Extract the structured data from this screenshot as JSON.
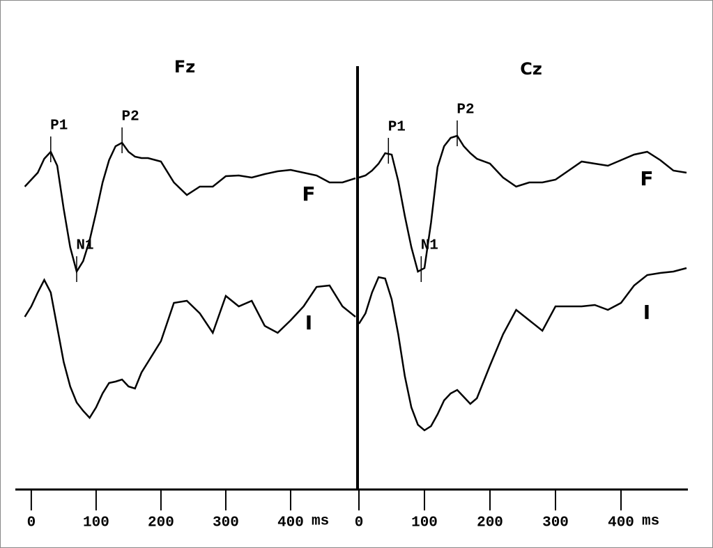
{
  "chart_data": [
    {
      "type": "line",
      "title": "Fz",
      "xlabel": "ms",
      "xlim": [
        -16,
        500
      ],
      "ylim": [
        -30,
        30
      ],
      "xticks": [
        0,
        100,
        200,
        300,
        400
      ],
      "x": [
        -10,
        0,
        10,
        20,
        30,
        40,
        50,
        60,
        70,
        80,
        90,
        100,
        110,
        120,
        130,
        140,
        150,
        160,
        170,
        180,
        200,
        220,
        240,
        260,
        280,
        300,
        320,
        340,
        360,
        380,
        400,
        420,
        440,
        460,
        480,
        500
      ],
      "series": [
        {
          "name": "F",
          "color": "#000000",
          "values": [
            13.2,
            14.2,
            15.2,
            17.2,
            18.2,
            16.2,
            10,
            4.5,
            1,
            2.5,
            5.5,
            9.5,
            13.8,
            17,
            19,
            19.5,
            18.2,
            17.5,
            17.3,
            17.3,
            16.8,
            13.8,
            12,
            13.2,
            13.2,
            14.7,
            14.8,
            14.5,
            15,
            15.4,
            15.6,
            15.2,
            14.8,
            13.8,
            13.8,
            14.4
          ]
        },
        {
          "name": "I",
          "color": "#000000",
          "values": [
            -5.5,
            -4,
            -2,
            -0.2,
            -2,
            -7,
            -12,
            -15.5,
            -17.8,
            -19,
            -20,
            -18.5,
            -16.5,
            -15,
            -14.8,
            -14.5,
            -15.5,
            -15.8,
            -13.5,
            -12,
            -9,
            -3.5,
            -3.2,
            -5,
            -7.8,
            -2.5,
            -4,
            -3.2,
            -6.8,
            -7.8,
            -6,
            -4,
            -1.2,
            -1,
            -4,
            -5.5
          ]
        }
      ],
      "annotations": [
        {
          "label": "P1",
          "x": 30,
          "y": 18.2
        },
        {
          "label": "N1",
          "x": 70,
          "y": 1
        },
        {
          "label": "P2",
          "x": 140,
          "y": 19.5
        }
      ]
    },
    {
      "type": "line",
      "title": "Cz",
      "xlabel": "ms",
      "xlim": [
        0,
        500
      ],
      "ylim": [
        -30,
        30
      ],
      "xticks": [
        0,
        100,
        200,
        300,
        400
      ],
      "x": [
        0,
        10,
        20,
        30,
        40,
        50,
        60,
        70,
        80,
        90,
        100,
        110,
        120,
        130,
        140,
        150,
        160,
        170,
        180,
        200,
        220,
        240,
        260,
        280,
        300,
        320,
        340,
        360,
        380,
        400,
        420,
        440,
        460,
        480,
        500
      ],
      "series": [
        {
          "name": "F",
          "color": "#000000",
          "values": [
            14.5,
            14.8,
            15.5,
            16.5,
            18,
            17.8,
            14,
            9,
            4.5,
            1,
            1.5,
            8,
            16,
            19,
            20.2,
            20.5,
            19,
            18,
            17.2,
            16.5,
            14.5,
            13.2,
            13.8,
            13.8,
            14.2,
            15.5,
            16.8,
            16.5,
            16.2,
            17,
            17.8,
            18.2,
            17,
            15.5,
            15.2
          ]
        },
        {
          "name": "I",
          "color": "#000000",
          "values": [
            -6.5,
            -5,
            -2,
            0.2,
            0,
            -3,
            -8,
            -14,
            -18.5,
            -21,
            -21.8,
            -21.2,
            -19.5,
            -17.5,
            -16.5,
            -16,
            -17,
            -18,
            -17.2,
            -12.5,
            -8,
            -4.5,
            -6,
            -7.5,
            -4,
            -4,
            -4,
            -3.8,
            -4.5,
            -3.5,
            -1,
            0.5,
            0.8,
            1,
            1.5
          ]
        }
      ],
      "annotations": [
        {
          "label": "P1",
          "x": 45,
          "y": 18
        },
        {
          "label": "N1",
          "x": 95,
          "y": 1
        },
        {
          "label": "P2",
          "x": 150,
          "y": 20.5
        }
      ]
    }
  ]
}
